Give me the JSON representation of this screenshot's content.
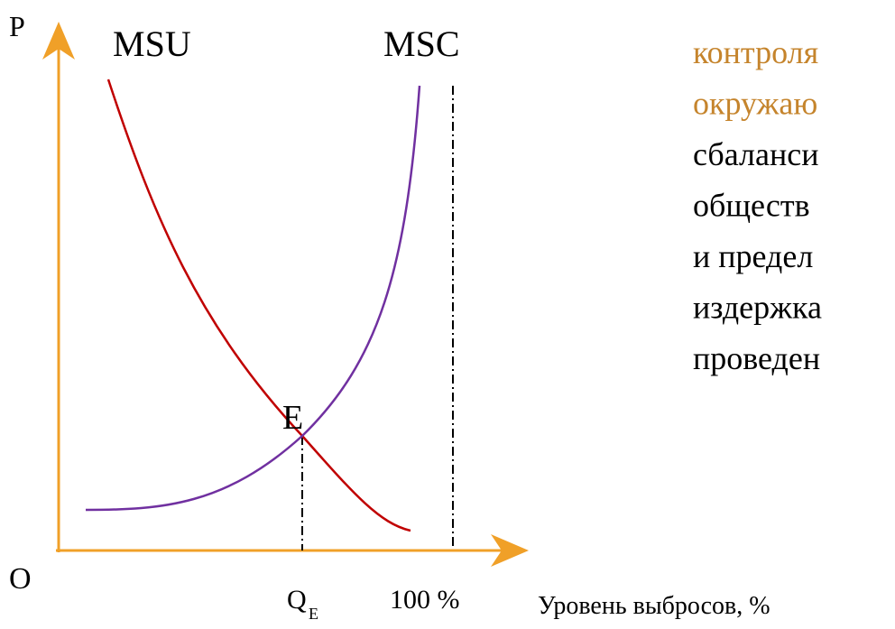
{
  "axis_labels": {
    "y": "P",
    "origin": "O",
    "x_title": "Уровень выбросов, %",
    "q_main": "Q",
    "q_sub": "E",
    "max": "100 %"
  },
  "curves": {
    "msu": "MSU",
    "msc": "MSC",
    "equilibrium": "E"
  },
  "side_text": {
    "highlighted": [
      "контроля",
      "окружаю"
    ],
    "lines": [
      "сбаланси",
      "обществ",
      "и предел",
      "издержка",
      "проведен"
    ]
  }
}
